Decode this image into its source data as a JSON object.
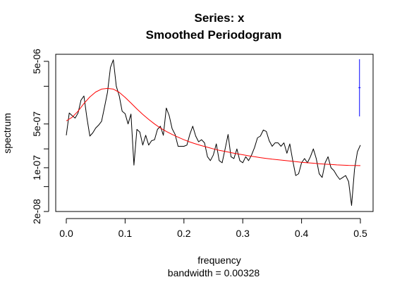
{
  "chart_data": {
    "type": "line",
    "title": "Series: x",
    "subtitle": "Smoothed Periodogram",
    "xlabel": "frequency",
    "xlabel_sub": "bandwidth = 0.00328",
    "ylabel": "spectrum",
    "xlim": [
      0,
      0.5
    ],
    "ylim_log": [
      2e-08,
      5e-06
    ],
    "y_scale": "log",
    "grid": false,
    "x_ticks": [
      {
        "value": 0.0,
        "label": "0.0"
      },
      {
        "value": 0.1,
        "label": "0.1"
      },
      {
        "value": 0.2,
        "label": "0.2"
      },
      {
        "value": 0.3,
        "label": "0.3"
      },
      {
        "value": 0.4,
        "label": "0.4"
      },
      {
        "value": 0.5,
        "label": "0.5"
      }
    ],
    "y_ticks_labeled": [
      {
        "value": 2e-08,
        "label": "2e-08"
      },
      {
        "value": 1e-07,
        "label": "1e-07"
      },
      {
        "value": 5e-07,
        "label": "5e-07"
      },
      {
        "value": 5e-06,
        "label": "5e-06"
      }
    ],
    "y_ticks_minor": [
      5e-08,
      2e-07,
      2e-06
    ],
    "series": [
      {
        "color": "#000000",
        "x": [
          0.0,
          0.005,
          0.01,
          0.015,
          0.02,
          0.025,
          0.03,
          0.035,
          0.04,
          0.045,
          0.05,
          0.055,
          0.06,
          0.065,
          0.07,
          0.075,
          0.08,
          0.085,
          0.09,
          0.095,
          0.1,
          0.105,
          0.11,
          0.115,
          0.12,
          0.125,
          0.13,
          0.135,
          0.14,
          0.145,
          0.15,
          0.155,
          0.16,
          0.165,
          0.17,
          0.175,
          0.18,
          0.185,
          0.19,
          0.195,
          0.2,
          0.205,
          0.21,
          0.215,
          0.22,
          0.225,
          0.23,
          0.235,
          0.24,
          0.245,
          0.25,
          0.255,
          0.26,
          0.265,
          0.27,
          0.275,
          0.28,
          0.285,
          0.29,
          0.295,
          0.3,
          0.305,
          0.31,
          0.315,
          0.32,
          0.325,
          0.33,
          0.335,
          0.34,
          0.345,
          0.35,
          0.355,
          0.36,
          0.365,
          0.37,
          0.375,
          0.38,
          0.385,
          0.39,
          0.395,
          0.4,
          0.405,
          0.41,
          0.415,
          0.42,
          0.425,
          0.43,
          0.435,
          0.44,
          0.445,
          0.45,
          0.455,
          0.46,
          0.465,
          0.47,
          0.475,
          0.48,
          0.485,
          0.49,
          0.495,
          0.5
        ],
        "y": [
          3.3e-07,
          7.5e-07,
          6.8e-07,
          6.2e-07,
          7.5e-07,
          1.2e-06,
          1.4e-06,
          6.3e-07,
          3.2e-07,
          3.6e-07,
          4.3e-07,
          4.8e-07,
          5.5e-07,
          9.3e-07,
          1.6e-06,
          4e-06,
          5.3e-06,
          2e-06,
          1.4e-06,
          8e-07,
          7.3e-07,
          5e-07,
          7.2e-07,
          1.1e-07,
          4.1e-07,
          3.7e-07,
          2.3e-07,
          3.3e-07,
          2.3e-07,
          2.7e-07,
          2.8e-07,
          4.1e-07,
          4.6e-07,
          3.3e-07,
          9e-07,
          6.8e-07,
          4.2e-07,
          3.4e-07,
          2.2e-07,
          2.2e-07,
          2.2e-07,
          2.3e-07,
          3.4e-07,
          4.6e-07,
          3.2e-07,
          2.6e-07,
          2.8e-07,
          2.5e-07,
          1.5e-07,
          1.3e-07,
          1.6e-07,
          2.4e-07,
          1.3e-07,
          1.2e-07,
          2e-07,
          3.4e-07,
          1.5e-07,
          1.4e-07,
          2e-07,
          1.3e-07,
          1.2e-07,
          1.5e-07,
          1.3e-07,
          1.6e-07,
          2.1e-07,
          3e-07,
          3.2e-07,
          4e-07,
          3.8e-07,
          2.7e-07,
          2.2e-07,
          2.5e-07,
          2.5e-07,
          2.2e-07,
          2.5e-07,
          1.7e-07,
          2.4e-07,
          1.3e-07,
          7.5e-08,
          8e-08,
          1.2e-07,
          1.4e-07,
          1.2e-07,
          1.5e-07,
          2e-07,
          1.4e-07,
          8e-08,
          7e-08,
          1.2e-07,
          1.5e-07,
          1e-07,
          9e-08,
          7.5e-08,
          6.5e-08,
          7e-08,
          7.5e-08,
          6e-08,
          2.5e-08,
          9.5e-08,
          1.8e-07,
          2.3e-07
        ]
      },
      {
        "color": "#ff0000",
        "x": [
          0.0,
          0.01,
          0.02,
          0.03,
          0.04,
          0.05,
          0.06,
          0.07,
          0.08,
          0.09,
          0.1,
          0.11,
          0.12,
          0.13,
          0.14,
          0.15,
          0.16,
          0.17,
          0.18,
          0.19,
          0.2,
          0.21,
          0.22,
          0.23,
          0.24,
          0.25,
          0.26,
          0.27,
          0.28,
          0.29,
          0.3,
          0.31,
          0.32,
          0.33,
          0.34,
          0.35,
          0.36,
          0.37,
          0.38,
          0.39,
          0.4,
          0.41,
          0.42,
          0.43,
          0.44,
          0.45,
          0.46,
          0.47,
          0.48,
          0.49,
          0.5
        ],
        "y": [
          5.6e-07,
          6.4e-07,
          8e-07,
          1.06e-06,
          1.35e-06,
          1.62e-06,
          1.8e-06,
          1.85e-06,
          1.8e-06,
          1.6e-06,
          1.33e-06,
          1.08e-06,
          8.7e-07,
          7.1e-07,
          5.9e-07,
          5e-07,
          4.3e-07,
          3.8e-07,
          3.4e-07,
          3.07e-07,
          2.8e-07,
          2.58e-07,
          2.4e-07,
          2.25e-07,
          2.12e-07,
          2e-07,
          1.9e-07,
          1.82e-07,
          1.74e-07,
          1.67e-07,
          1.61e-07,
          1.55e-07,
          1.5e-07,
          1.45e-07,
          1.41e-07,
          1.37e-07,
          1.34e-07,
          1.31e-07,
          1.28e-07,
          1.25e-07,
          1.22e-07,
          1.2e-07,
          1.18e-07,
          1.16e-07,
          1.14e-07,
          1.13e-07,
          1.11e-07,
          1.1e-07,
          1.09e-07,
          1.085e-07,
          1.08e-07
        ]
      }
    ],
    "bandwidth_indicator": {
      "color": "#0000ff",
      "x": 0.4985,
      "y_low": 6.6e-07,
      "y_high": 5.4e-06,
      "y_center": 1.9e-06
    }
  }
}
